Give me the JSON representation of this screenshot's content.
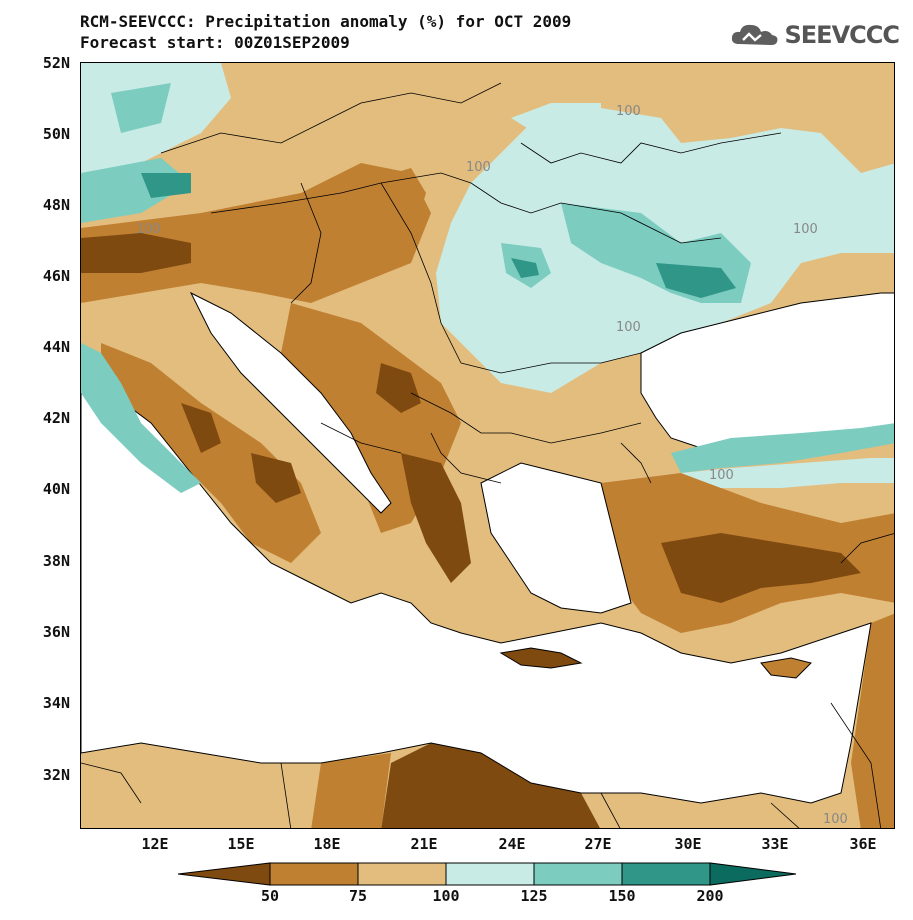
{
  "title": {
    "line1": "RCM-SEEVCCC: Precipitation anomaly (%) for OCT 2009",
    "line2": "Forecast start: 00Z01SEP2009"
  },
  "logo": {
    "icon": "cloud-icon",
    "text": "SEEVCCC"
  },
  "axes": {
    "y_labels": [
      "52N",
      "50N",
      "48N",
      "46N",
      "44N",
      "42N",
      "40N",
      "38N",
      "36N",
      "34N",
      "32N"
    ],
    "x_labels": [
      "12E",
      "15E",
      "18E",
      "21E",
      "24E",
      "27E",
      "30E",
      "33E",
      "36E"
    ]
  },
  "contour_labels": [
    "100",
    "100",
    "100",
    "100",
    "100",
    "100",
    "100"
  ],
  "colorbar": {
    "labels": [
      "50",
      "75",
      "100",
      "125",
      "150",
      "200"
    ],
    "colors": [
      "#7f4a10",
      "#c08032",
      "#e2bd7e",
      "#c9ebe6",
      "#7cccc0",
      "#2f9688",
      "#0b6b5f"
    ]
  }
}
